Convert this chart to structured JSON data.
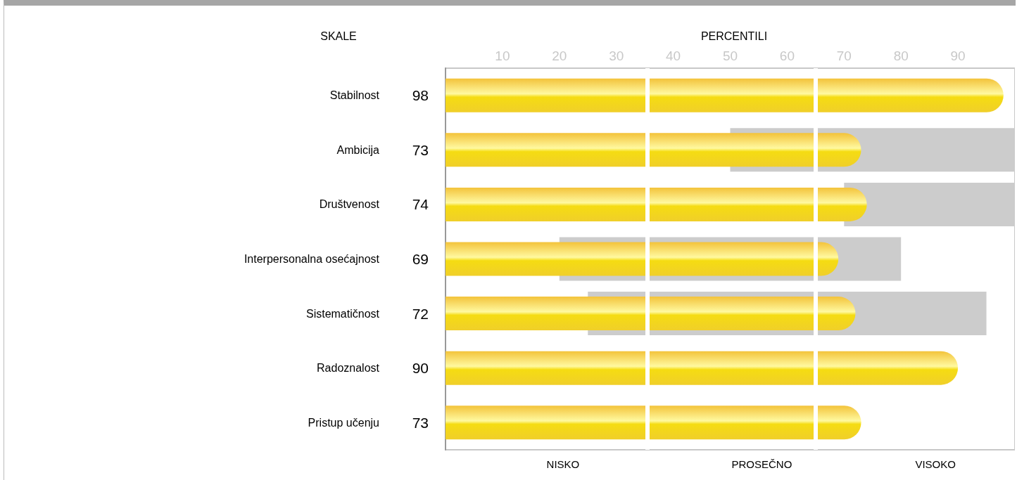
{
  "chart_data": {
    "type": "bar",
    "orientation": "horizontal",
    "title": "PERCENTILI",
    "ylabel": "SKALE",
    "categories": [
      "Stabilnost",
      "Ambicija",
      "Društvenost",
      "Interpersonalna osećajnost",
      "Sistematičnost",
      "Radoznalost",
      "Pristup učenju"
    ],
    "series": [
      {
        "color": "#cccccc",
        "base": [
          null,
          50,
          70,
          20,
          25,
          null,
          null
        ],
        "values": [
          null,
          50,
          30,
          60,
          70,
          null,
          null
        ]
      },
      {
        "color": "#f5dc12",
        "values": [
          98,
          73,
          74,
          69,
          72,
          90,
          73
        ],
        "value_labels": [
          "98",
          "73",
          "74",
          "69",
          "72",
          "90",
          "73"
        ]
      }
    ],
    "xlim": [
      0,
      100
    ],
    "xticks": [
      10,
      20,
      30,
      40,
      50,
      60,
      70,
      80,
      90
    ],
    "grid": false,
    "ref_lines": [
      {
        "axis": "x",
        "value": 35.5,
        "color": "#ffffff"
      },
      {
        "axis": "x",
        "value": 65,
        "color": "#ffffff"
      }
    ],
    "annotations": [
      "NISKO",
      "PROSEČNO",
      "VISOKO"
    ]
  }
}
